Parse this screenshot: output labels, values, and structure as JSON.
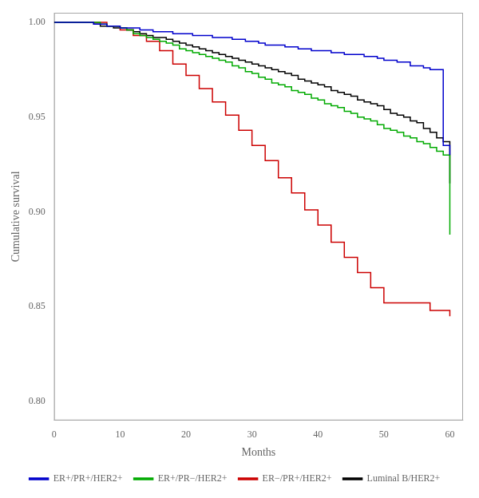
{
  "chart_data": {
    "type": "step",
    "title": "",
    "xlabel": "Months",
    "ylabel": "Cumulative survival",
    "xlim": [
      0,
      62
    ],
    "ylim": [
      0.79,
      1.005
    ],
    "xticks": [
      0,
      10,
      20,
      30,
      40,
      50,
      60
    ],
    "yticks": [
      {
        "value": 0.8,
        "label": "0.80"
      },
      0.85,
      {
        "value": 0.9,
        "label": "0.90"
      },
      0.95,
      {
        "value": 1.0,
        "label": "1.00"
      }
    ],
    "grid": false,
    "legend": "bottom",
    "series": [
      {
        "name": "ER+/PR+/HER2+",
        "color": "#0000cc",
        "x": [
          0,
          5,
          6,
          7,
          8,
          9,
          10,
          11,
          12,
          13,
          14,
          15,
          16,
          17,
          18,
          19,
          20,
          21,
          22,
          23,
          24,
          25,
          26,
          27,
          28,
          29,
          30,
          31,
          32,
          33,
          34,
          35,
          36,
          37,
          38,
          39,
          40,
          41,
          42,
          43,
          44,
          45,
          46,
          47,
          48,
          49,
          50,
          51,
          52,
          53,
          54,
          55,
          56,
          57,
          58,
          59,
          60
        ],
        "values": [
          1.0,
          1.0,
          0.999,
          0.999,
          0.998,
          0.998,
          0.997,
          0.997,
          0.997,
          0.996,
          0.996,
          0.995,
          0.995,
          0.995,
          0.994,
          0.994,
          0.994,
          0.993,
          0.993,
          0.993,
          0.992,
          0.992,
          0.992,
          0.991,
          0.991,
          0.99,
          0.99,
          0.989,
          0.988,
          0.988,
          0.988,
          0.987,
          0.987,
          0.986,
          0.986,
          0.985,
          0.985,
          0.985,
          0.984,
          0.984,
          0.983,
          0.983,
          0.983,
          0.982,
          0.982,
          0.981,
          0.98,
          0.98,
          0.979,
          0.979,
          0.977,
          0.977,
          0.976,
          0.975,
          0.975,
          0.935,
          0.93
        ]
      },
      {
        "name": "ER+/PR−/HER2+",
        "color": "#00aa00",
        "x": [
          0,
          5,
          7,
          8,
          9,
          10,
          11,
          12,
          13,
          14,
          15,
          16,
          17,
          18,
          19,
          20,
          21,
          22,
          23,
          24,
          25,
          26,
          27,
          28,
          29,
          30,
          31,
          32,
          33,
          34,
          35,
          36,
          37,
          38,
          39,
          40,
          41,
          42,
          43,
          44,
          45,
          46,
          47,
          48,
          49,
          50,
          51,
          52,
          53,
          54,
          55,
          56,
          57,
          58,
          59,
          60
        ],
        "values": [
          1.0,
          1.0,
          0.999,
          0.998,
          0.998,
          0.997,
          0.996,
          0.994,
          0.993,
          0.992,
          0.991,
          0.99,
          0.989,
          0.988,
          0.986,
          0.985,
          0.984,
          0.983,
          0.982,
          0.981,
          0.98,
          0.979,
          0.977,
          0.976,
          0.974,
          0.973,
          0.971,
          0.97,
          0.968,
          0.967,
          0.966,
          0.964,
          0.963,
          0.962,
          0.96,
          0.959,
          0.957,
          0.956,
          0.955,
          0.953,
          0.952,
          0.95,
          0.949,
          0.948,
          0.946,
          0.944,
          0.943,
          0.942,
          0.94,
          0.939,
          0.937,
          0.936,
          0.934,
          0.932,
          0.93,
          0.888
        ]
      },
      {
        "name": "ER−/PR+/HER2+",
        "color": "#cc0000",
        "x": [
          0,
          6,
          8,
          10,
          12,
          14,
          16,
          18,
          20,
          22,
          24,
          26,
          28,
          30,
          32,
          34,
          36,
          38,
          40,
          42,
          44,
          46,
          48,
          50,
          52,
          54,
          56,
          57,
          60
        ],
        "values": [
          1.0,
          1.0,
          0.998,
          0.996,
          0.993,
          0.99,
          0.985,
          0.978,
          0.972,
          0.965,
          0.958,
          0.951,
          0.943,
          0.935,
          0.927,
          0.918,
          0.91,
          0.901,
          0.893,
          0.884,
          0.876,
          0.868,
          0.86,
          0.852,
          0.852,
          0.852,
          0.852,
          0.848,
          0.845
        ]
      },
      {
        "name": "Luminal B/HER2+",
        "color": "#000000",
        "x": [
          0,
          5,
          6,
          7,
          8,
          9,
          10,
          11,
          12,
          13,
          14,
          15,
          16,
          17,
          18,
          19,
          20,
          21,
          22,
          23,
          24,
          25,
          26,
          27,
          28,
          29,
          30,
          31,
          32,
          33,
          34,
          35,
          36,
          37,
          38,
          39,
          40,
          41,
          42,
          43,
          44,
          45,
          46,
          47,
          48,
          49,
          50,
          51,
          52,
          53,
          54,
          55,
          56,
          57,
          58,
          59,
          60
        ],
        "values": [
          1.0,
          1.0,
          0.999,
          0.998,
          0.998,
          0.997,
          0.997,
          0.996,
          0.995,
          0.994,
          0.993,
          0.992,
          0.992,
          0.991,
          0.99,
          0.989,
          0.988,
          0.987,
          0.986,
          0.985,
          0.984,
          0.983,
          0.982,
          0.981,
          0.98,
          0.979,
          0.978,
          0.977,
          0.976,
          0.975,
          0.974,
          0.973,
          0.972,
          0.97,
          0.969,
          0.968,
          0.967,
          0.966,
          0.964,
          0.963,
          0.962,
          0.961,
          0.959,
          0.958,
          0.957,
          0.956,
          0.954,
          0.952,
          0.951,
          0.95,
          0.948,
          0.947,
          0.944,
          0.942,
          0.939,
          0.937,
          0.915
        ]
      }
    ]
  }
}
